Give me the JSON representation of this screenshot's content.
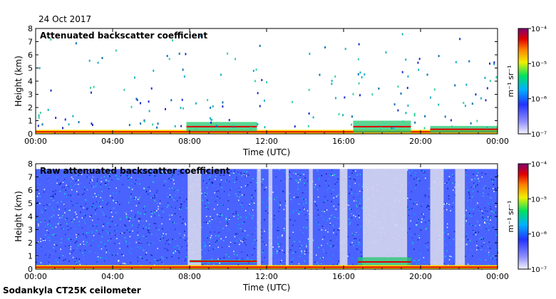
{
  "date": "24 Oct 2017",
  "footer": "Sodankyla CT25K ceilometer",
  "chart_data": [
    {
      "type": "heatmap",
      "title": "Attenuated backscatter coefficient",
      "xlabel": "Time (UTC)",
      "ylabel": "Height (km)",
      "xlim": [
        "00:00",
        "24:00"
      ],
      "ylim": [
        0,
        8
      ],
      "xticks": [
        "00:00",
        "04:00",
        "08:00",
        "12:00",
        "16:00",
        "20:00",
        "00:00"
      ],
      "yticks": [
        "0",
        "1",
        "2",
        "3",
        "4",
        "5",
        "6",
        "7",
        "8"
      ],
      "colorbar": {
        "label": "m⁻¹ sr⁻¹",
        "scale": "log",
        "range": [
          1e-07,
          0.0001
        ],
        "ticks": [
          "10⁻⁷",
          "10⁻⁶",
          "10⁻⁵",
          "10⁻⁴"
        ]
      },
      "features": [
        {
          "feature": "surface layer",
          "start": "00:00",
          "end": "24:00",
          "height_km": [
            0,
            0.3
          ]
        },
        {
          "feature": "cloud",
          "start": "07:50",
          "end": "11:30",
          "height_km": [
            0.2,
            0.9
          ]
        },
        {
          "feature": "cloud",
          "start": "16:30",
          "end": "19:30",
          "height_km": [
            0.1,
            1.0
          ]
        },
        {
          "feature": "cloud",
          "start": "20:30",
          "end": "24:00",
          "height_km": [
            0.1,
            0.6
          ]
        }
      ]
    },
    {
      "type": "heatmap",
      "title": "Raw attenuated backscatter coefficient",
      "xlabel": "Time (UTC)",
      "ylabel": "Height (km)",
      "xlim": [
        "00:00",
        "24:00"
      ],
      "ylim": [
        0,
        8
      ],
      "xticks": [
        "00:00",
        "04:00",
        "08:00",
        "12:00",
        "16:00",
        "20:00",
        "00:00"
      ],
      "yticks": [
        "0",
        "1",
        "2",
        "3",
        "4",
        "5",
        "6",
        "7",
        "8"
      ],
      "colorbar": {
        "label": "m⁻¹ sr⁻¹",
        "scale": "log",
        "range": [
          1e-07,
          0.0001
        ],
        "ticks": [
          "10⁻⁷",
          "10⁻⁶",
          "10⁻⁵",
          "10⁻⁴"
        ]
      },
      "features": [
        {
          "feature": "noise field",
          "start": "00:00",
          "end": "24:00",
          "height_km": [
            0,
            7.6
          ]
        },
        {
          "feature": "cloud",
          "start": "08:00",
          "end": "11:30",
          "height_km": [
            0.5,
            0.7
          ]
        },
        {
          "feature": "cloud",
          "start": "16:45",
          "end": "19:30",
          "height_km": [
            0.2,
            0.9
          ]
        }
      ]
    }
  ]
}
